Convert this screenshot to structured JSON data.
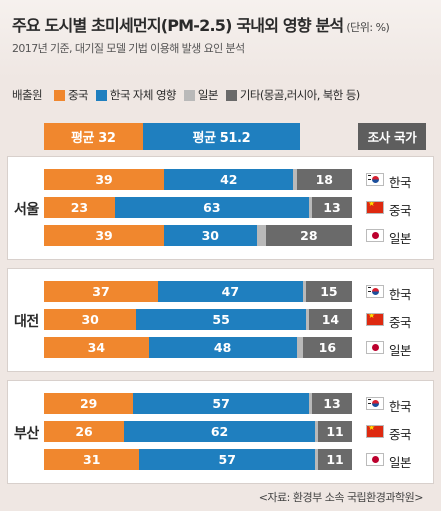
{
  "title": "주요 도시별 초미세먼지(PM-2.5) 국내외 영향 분석",
  "unit": "(단위: %)",
  "subtitle": "2017년 기준, 대기질 모델 기법 이용해 발생 요인 분석",
  "legend": {
    "label": "배출원",
    "items": [
      {
        "name": "중국",
        "color": "#f0872e"
      },
      {
        "name": "한국 자체 영향",
        "color": "#1f7fbf"
      },
      {
        "name": "일본",
        "color": "#b9b9b9"
      },
      {
        "name": "기타(몽골,러시아, 북한 등)",
        "color": "#6a6a6a"
      }
    ]
  },
  "averages": {
    "china": "평균 32",
    "korea": "평균 51.2"
  },
  "country_header": "조사 국가",
  "source": "<자료: 환경부 소속 국립환경과학원>",
  "chart_data": {
    "type": "bar",
    "stacked": true,
    "orientation": "horizontal",
    "unit": "%",
    "series_names": [
      "중국",
      "한국 자체 영향",
      "일본",
      "기타(몽골,러시아, 북한 등)"
    ],
    "groups": [
      {
        "city": "서울",
        "rows": [
          {
            "country": "한국",
            "flag": "korea-flag-icon",
            "values": [
              39,
              42,
              1,
              18
            ],
            "labels": [
              "39",
              "42",
              "",
              "18"
            ]
          },
          {
            "country": "중국",
            "flag": "china-flag-icon",
            "values": [
              23,
              63,
              1,
              13
            ],
            "labels": [
              "23",
              "63",
              "",
              "13"
            ]
          },
          {
            "country": "일본",
            "flag": "japan-flag-icon",
            "values": [
              39,
              30,
              3,
              28
            ],
            "labels": [
              "39",
              "30",
              "",
              "28"
            ]
          }
        ]
      },
      {
        "city": "대전",
        "rows": [
          {
            "country": "한국",
            "flag": "korea-flag-icon",
            "values": [
              37,
              47,
              1,
              15
            ],
            "labels": [
              "37",
              "47",
              "",
              "15"
            ]
          },
          {
            "country": "중국",
            "flag": "china-flag-icon",
            "values": [
              30,
              55,
              1,
              14
            ],
            "labels": [
              "30",
              "55",
              "",
              "14"
            ]
          },
          {
            "country": "일본",
            "flag": "japan-flag-icon",
            "values": [
              34,
              48,
              2,
              16
            ],
            "labels": [
              "34",
              "48",
              "",
              "16"
            ]
          }
        ]
      },
      {
        "city": "부산",
        "rows": [
          {
            "country": "한국",
            "flag": "korea-flag-icon",
            "values": [
              29,
              57,
              1,
              13
            ],
            "labels": [
              "29",
              "57",
              "",
              "13"
            ]
          },
          {
            "country": "중국",
            "flag": "china-flag-icon",
            "values": [
              26,
              62,
              1,
              11
            ],
            "labels": [
              "26",
              "62",
              "",
              "11"
            ]
          },
          {
            "country": "일본",
            "flag": "japan-flag-icon",
            "values": [
              31,
              57,
              1,
              11
            ],
            "labels": [
              "31",
              "57",
              "",
              "11"
            ]
          }
        ]
      }
    ]
  }
}
